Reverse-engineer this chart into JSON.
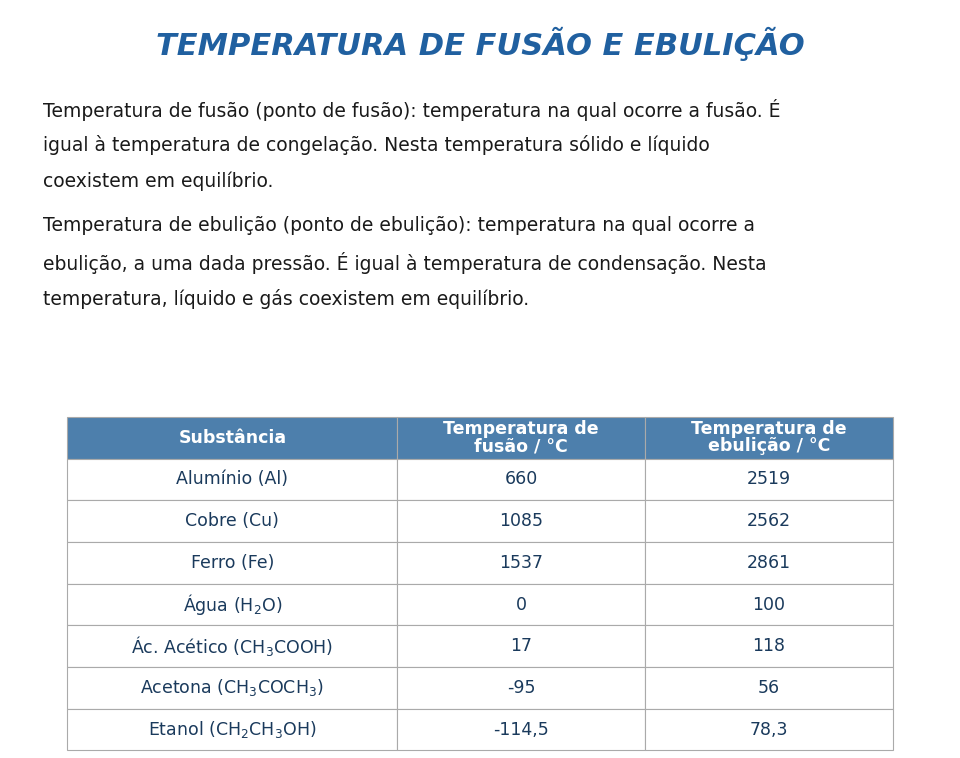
{
  "title": "TEMPERATURA DE FUSÃO E EBULIÇÃO",
  "paragraph1_line1": "Temperatura de fusão (ponto de fusão): temperatura na qual ocorre a fusão. É",
  "paragraph1_line2": "igual à temperatura de congelação. Nesta temperatura sólido e líquido",
  "paragraph1_line3": "coexistem em equilíbrio.",
  "paragraph2_line1": "Temperatura de ebulição (ponto de ebulição): temperatura na qual ocorre a",
  "paragraph2_line2": "ebulição, a uma dada pressão. É igual à temperatura de condensação. Nesta",
  "paragraph2_line3": "temperatura, líquido e gás coexistem em equilíbrio.",
  "header_bg": "#4d7fac",
  "header_text_color": "#ffffff",
  "row_bg": "#ffffff",
  "table_border_color": "#aaaaaa",
  "table_text_color": "#1a3a5c",
  "col_header1": "Substância",
  "col_header2": "Temperatura de\nfusão / °C",
  "col_header3": "Temperatura de\nebulição / °C",
  "background_color": "#ffffff",
  "title_color": "#2060a0",
  "body_text_color": "#1a1a1a",
  "title_fontsize": 22,
  "body_fontsize": 13.5,
  "table_fontsize": 12.5
}
